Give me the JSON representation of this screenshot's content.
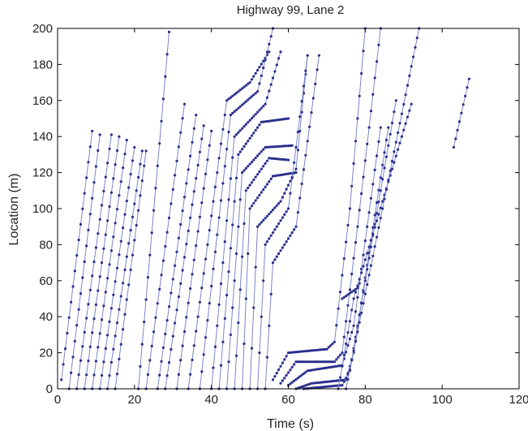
{
  "chart_data": {
    "type": "line",
    "title": "Highway 99, Lane 2",
    "xlabel": "Time (s)",
    "ylabel": "Location (m)",
    "xlim": [
      0,
      120
    ],
    "ylim": [
      0,
      200
    ],
    "xticks": [
      "0",
      "20",
      "40",
      "60",
      "80",
      "100",
      "120"
    ],
    "yticks": [
      "0",
      "20",
      "40",
      "60",
      "80",
      "100",
      "120",
      "140",
      "160",
      "180",
      "200"
    ],
    "grid": false,
    "legend": "none",
    "line_color": "#7b86c9",
    "marker_color": "#2a2f8c",
    "sample_interval_s": 1,
    "series": [
      {
        "points": [
          [
            1,
            5
          ],
          [
            9,
            143
          ]
        ]
      },
      {
        "points": [
          [
            3,
            0
          ],
          [
            11,
            141
          ]
        ]
      },
      {
        "points": [
          [
            5,
            0
          ],
          [
            14,
            141
          ]
        ]
      },
      {
        "points": [
          [
            7,
            0
          ],
          [
            16,
            140
          ]
        ]
      },
      {
        "points": [
          [
            9,
            0
          ],
          [
            18,
            138
          ]
        ]
      },
      {
        "points": [
          [
            11,
            0
          ],
          [
            20,
            134
          ]
        ]
      },
      {
        "points": [
          [
            13,
            0
          ],
          [
            22,
            132
          ]
        ]
      },
      {
        "points": [
          [
            15,
            0
          ],
          [
            23,
            132
          ]
        ]
      },
      {
        "points": [
          [
            21,
            0
          ],
          [
            29,
            198
          ]
        ]
      },
      {
        "points": [
          [
            23,
            0
          ],
          [
            33,
            158
          ]
        ]
      },
      {
        "points": [
          [
            26,
            0
          ],
          [
            36,
            152
          ]
        ]
      },
      {
        "points": [
          [
            28,
            0
          ],
          [
            38,
            146
          ]
        ]
      },
      {
        "points": [
          [
            31,
            0
          ],
          [
            40,
            143
          ]
        ]
      },
      {
        "points": [
          [
            34,
            0
          ],
          [
            44,
            160
          ],
          [
            50,
            170
          ],
          [
            55,
            187
          ]
        ]
      },
      {
        "points": [
          [
            37,
            0
          ],
          [
            45,
            152
          ],
          [
            52,
            165
          ],
          [
            56,
            200
          ]
        ]
      },
      {
        "points": [
          [
            40,
            0
          ],
          [
            46,
            140
          ],
          [
            54,
            158
          ],
          [
            58,
            187
          ]
        ]
      },
      {
        "points": [
          [
            42,
            0
          ],
          [
            47,
            130
          ],
          [
            53,
            148
          ],
          [
            60,
            150
          ]
        ]
      },
      {
        "points": [
          [
            44,
            0
          ],
          [
            48,
            120
          ],
          [
            54,
            134
          ],
          [
            61,
            135
          ]
        ]
      },
      {
        "points": [
          [
            46,
            0
          ],
          [
            49,
            110
          ],
          [
            55,
            128
          ],
          [
            60,
            127
          ]
        ]
      },
      {
        "points": [
          [
            48,
            0
          ],
          [
            50,
            100
          ],
          [
            56,
            118
          ],
          [
            62,
            120
          ]
        ]
      },
      {
        "points": [
          [
            50,
            0
          ],
          [
            52,
            90
          ],
          [
            58,
            104
          ],
          [
            62,
            122
          ],
          [
            65,
            185
          ]
        ]
      },
      {
        "points": [
          [
            52,
            0
          ],
          [
            54,
            80
          ],
          [
            60,
            100
          ],
          [
            65,
            185
          ]
        ]
      },
      {
        "points": [
          [
            54,
            0
          ],
          [
            56,
            70
          ],
          [
            62,
            90
          ],
          [
            68,
            185
          ]
        ]
      },
      {
        "points": [
          [
            56,
            5
          ],
          [
            60,
            20
          ],
          [
            70,
            22
          ],
          [
            72,
            26
          ],
          [
            76,
            100
          ],
          [
            80,
            200
          ]
        ]
      },
      {
        "points": [
          [
            58,
            3
          ],
          [
            62,
            15
          ],
          [
            72,
            15
          ],
          [
            74,
            20
          ],
          [
            78,
            90
          ],
          [
            84,
            200
          ]
        ]
      },
      {
        "points": [
          [
            60,
            2
          ],
          [
            65,
            10
          ],
          [
            74,
            13
          ],
          [
            77,
            35
          ],
          [
            84,
            145
          ]
        ]
      },
      {
        "points": [
          [
            62,
            0
          ],
          [
            66,
            3
          ],
          [
            75,
            5
          ],
          [
            77,
            20
          ],
          [
            86,
            145
          ]
        ]
      },
      {
        "points": [
          [
            64,
            0
          ],
          [
            74,
            2
          ],
          [
            76,
            10
          ],
          [
            88,
            160
          ]
        ]
      },
      {
        "points": [
          [
            73,
            0
          ],
          [
            77,
            50
          ],
          [
            92,
            158
          ]
        ]
      },
      {
        "points": [
          [
            75,
            0
          ],
          [
            94,
            200
          ]
        ]
      },
      {
        "points": [
          [
            74,
            50
          ],
          [
            78,
            56
          ]
        ]
      },
      {
        "points": [
          [
            103,
            134
          ],
          [
            107,
            172
          ]
        ]
      }
    ]
  }
}
